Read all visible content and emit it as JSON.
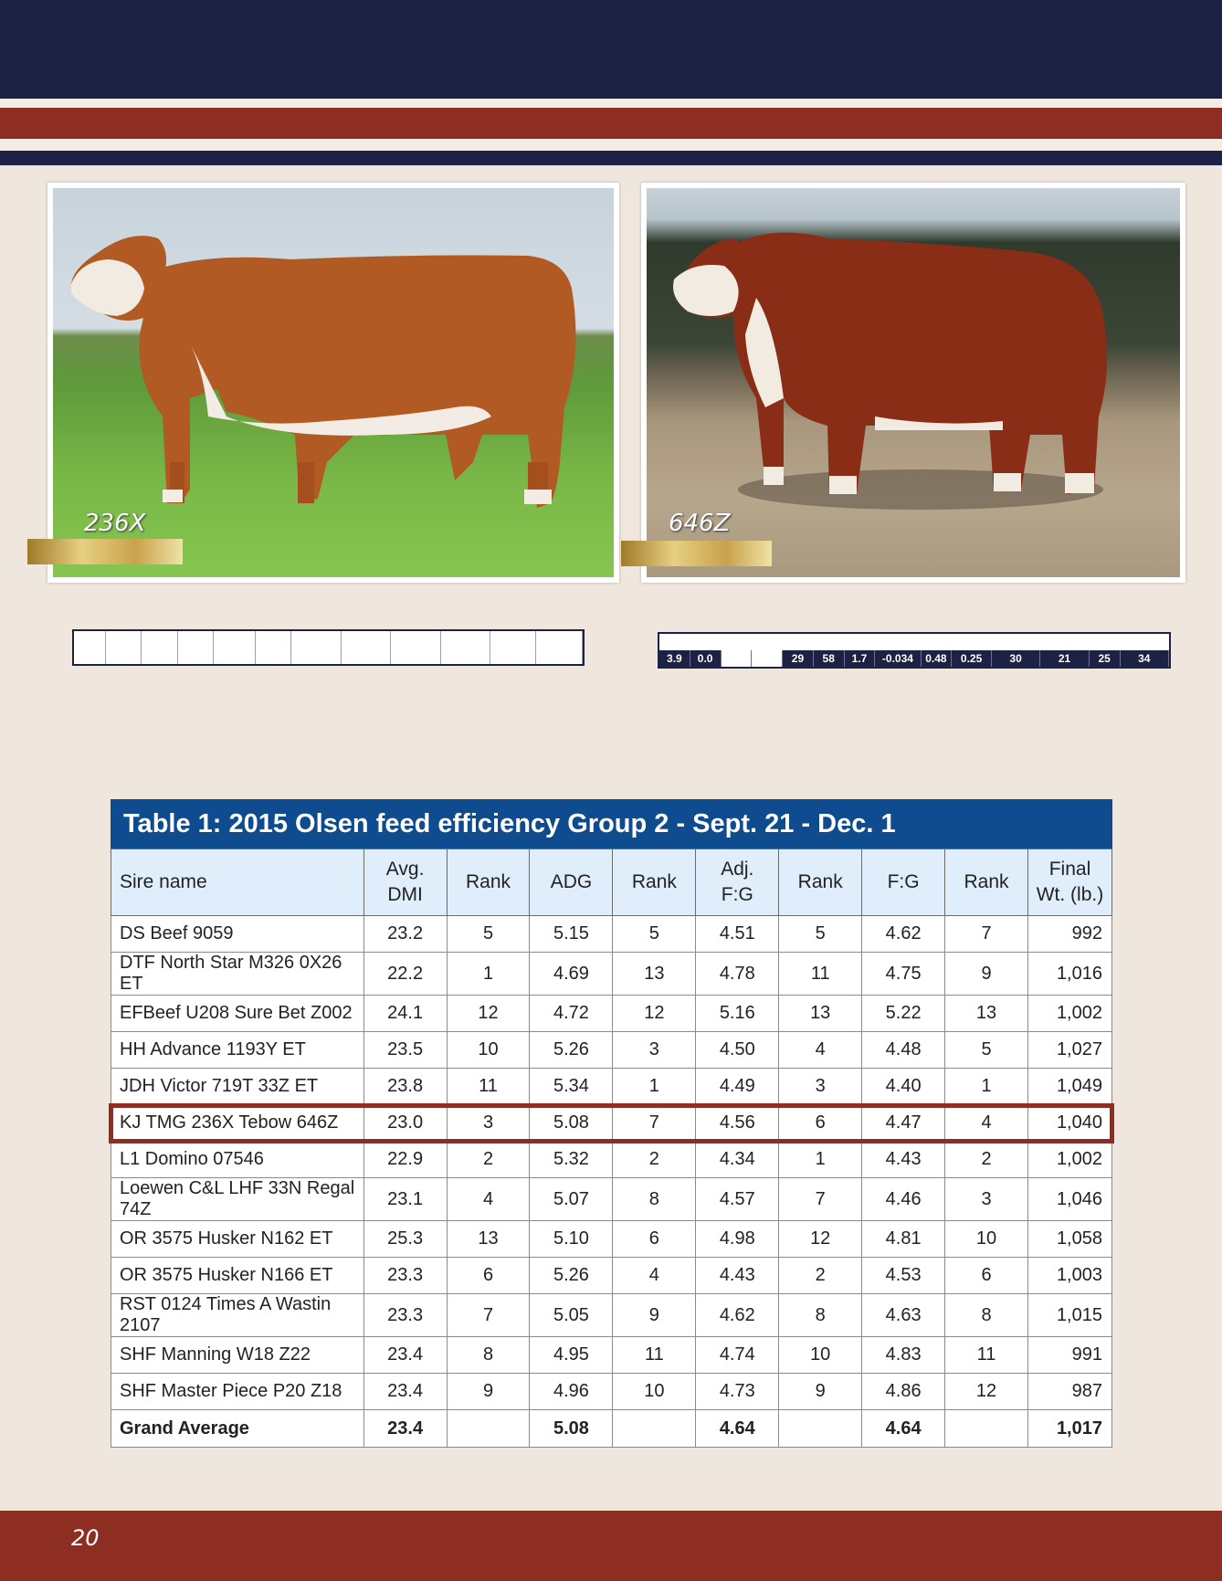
{
  "photos": {
    "left": {
      "id_label": "236X"
    },
    "right": {
      "id_label": "646Z"
    }
  },
  "mini_table_right": {
    "values": [
      "3.9",
      "0.0",
      "",
      "",
      "29",
      "58",
      "1.7",
      "-0.034",
      "0.48",
      "0.25",
      "30",
      "21",
      "25",
      "34"
    ]
  },
  "table": {
    "title": "Table 1: 2015 Olsen feed efficiency Group 2 - Sept. 21 - Dec. 1",
    "headers": {
      "sire": "Sire name",
      "dmi_1": "Avg.",
      "dmi_2": "DMI",
      "rank1": "Rank",
      "adg": "ADG",
      "rank2": "Rank",
      "adjfg_1": "Adj.",
      "adjfg_2": "F:G",
      "rank3": "Rank",
      "fg": "F:G",
      "rank4": "Rank",
      "wt_1": "Final",
      "wt_2": "Wt. (lb.)"
    },
    "rows": [
      [
        "DS Beef 9059",
        "23.2",
        "5",
        "5.15",
        "5",
        "4.51",
        "5",
        "4.62",
        "7",
        "992"
      ],
      [
        "DTF North Star M326 0X26 ET",
        "22.2",
        "1",
        "4.69",
        "13",
        "4.78",
        "11",
        "4.75",
        "9",
        "1,016"
      ],
      [
        "EFBeef U208 Sure Bet Z002",
        "24.1",
        "12",
        "4.72",
        "12",
        "5.16",
        "13",
        "5.22",
        "13",
        "1,002"
      ],
      [
        "HH Advance 1193Y ET",
        "23.5",
        "10",
        "5.26",
        "3",
        "4.50",
        "4",
        "4.48",
        "5",
        "1,027"
      ],
      [
        "JDH Victor 719T 33Z ET",
        "23.8",
        "11",
        "5.34",
        "1",
        "4.49",
        "3",
        "4.40",
        "1",
        "1,049"
      ],
      [
        "KJ TMG 236X Tebow 646Z",
        "23.0",
        "3",
        "5.08",
        "7",
        "4.56",
        "6",
        "4.47",
        "4",
        "1,040"
      ],
      [
        "L1 Domino 07546",
        "22.9",
        "2",
        "5.32",
        "2",
        "4.34",
        "1",
        "4.43",
        "2",
        "1,002"
      ],
      [
        "Loewen C&L LHF 33N Regal 74Z",
        "23.1",
        "4",
        "5.07",
        "8",
        "4.57",
        "7",
        "4.46",
        "3",
        "1,046"
      ],
      [
        "OR 3575 Husker N162 ET",
        "25.3",
        "13",
        "5.10",
        "6",
        "4.98",
        "12",
        "4.81",
        "10",
        "1,058"
      ],
      [
        "OR 3575 Husker N166 ET",
        "23.3",
        "6",
        "5.26",
        "4",
        "4.43",
        "2",
        "4.53",
        "6",
        "1,003"
      ],
      [
        "RST 0124 Times A Wastin 2107",
        "23.3",
        "7",
        "5.05",
        "9",
        "4.62",
        "8",
        "4.63",
        "8",
        "1,015"
      ],
      [
        "SHF Manning W18 Z22",
        "23.4",
        "8",
        "4.95",
        "11",
        "4.74",
        "10",
        "4.83",
        "11",
        "991"
      ],
      [
        "SHF Master Piece P20 Z18",
        "23.4",
        "9",
        "4.96",
        "10",
        "4.73",
        "9",
        "4.86",
        "12",
        "987"
      ]
    ],
    "average": [
      "Grand Average",
      "23.4",
      "",
      "5.08",
      "",
      "4.64",
      "",
      "4.64",
      "",
      "1,017"
    ],
    "highlighted_row": "KJ TMG 236X Tebow 646Z"
  },
  "footer": {
    "page_number": "20"
  },
  "colors": {
    "navy": "#1d2143",
    "red": "#8e2e22",
    "table_blue": "#0e4c8f",
    "header_light": "#dfeefa"
  }
}
